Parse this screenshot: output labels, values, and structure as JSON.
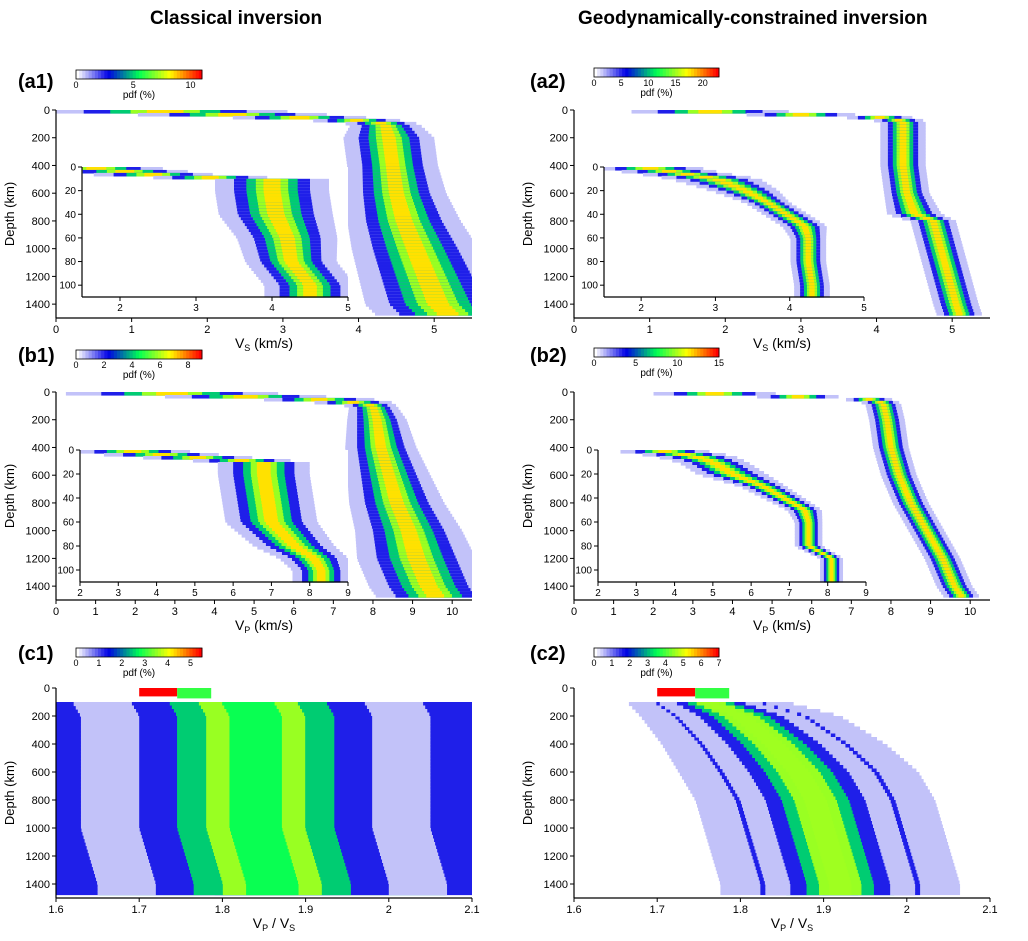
{
  "titles": {
    "left": "Classical inversion",
    "right": "Geodynamically-constrained inversion"
  },
  "colormap_stops": [
    "#ffffff",
    "#0000e6",
    "#00ff55",
    "#ffff00",
    "#ff0000"
  ],
  "chart_data": [
    {
      "id": "a1",
      "panel_label": "(a1)",
      "type": "heatmap",
      "xlabel": "V",
      "xlabel_sub": "S",
      "xlabel_unit": "(km/s)",
      "ylabel": "Depth (km)",
      "xlim": [
        0,
        5.5
      ],
      "ylim": [
        0,
        1500
      ],
      "xticks": [
        0,
        1,
        2,
        3,
        4,
        5
      ],
      "yticks": [
        0,
        200,
        400,
        600,
        800,
        1000,
        1200,
        1400
      ],
      "colorbar": {
        "label": "pdf (%)",
        "ticks": [
          0,
          5,
          10
        ],
        "max": 11
      },
      "ridge": {
        "depth": [
          0,
          70,
          100,
          200,
          400,
          600,
          800,
          1000,
          1200,
          1400,
          1480
        ],
        "velocity": [
          1.0,
          3.9,
          4.35,
          4.4,
          4.45,
          4.5,
          4.6,
          4.75,
          4.9,
          5.05,
          5.2
        ],
        "width": [
          0.6,
          0.2,
          0.15,
          0.2,
          0.2,
          0.22,
          0.25,
          0.28,
          0.3,
          0.32,
          0.32
        ]
      },
      "inset": {
        "xlim": [
          1.5,
          5
        ],
        "ylim": [
          0,
          110
        ],
        "xticks": [
          2,
          3,
          4,
          5
        ],
        "yticks": [
          0,
          20,
          40,
          60,
          80,
          100
        ],
        "ridge": {
          "depth": [
            0,
            8,
            10,
            20,
            40,
            60,
            80,
            100,
            110
          ],
          "velocity": [
            1.5,
            2.7,
            4.0,
            4.0,
            4.05,
            4.2,
            4.25,
            4.5,
            4.5
          ],
          "width": [
            0.3,
            0.25,
            0.25,
            0.25,
            0.25,
            0.22,
            0.2,
            0.2,
            0.2
          ]
        }
      }
    },
    {
      "id": "a2",
      "panel_label": "(a2)",
      "type": "heatmap",
      "xlabel": "V",
      "xlabel_sub": "S",
      "xlabel_unit": "(km/s)",
      "ylabel": "Depth (km)",
      "xlim": [
        0,
        5.5
      ],
      "ylim": [
        0,
        1500
      ],
      "xticks": [
        0,
        1,
        2,
        3,
        4,
        5
      ],
      "yticks": [
        0,
        200,
        400,
        600,
        800,
        1000,
        1200,
        1400
      ],
      "colorbar": {
        "label": "pdf (%)",
        "ticks": [
          0,
          5,
          10,
          15,
          20
        ],
        "max": 23
      },
      "ridge": {
        "depth": [
          0,
          50,
          80,
          200,
          400,
          600,
          750,
          800,
          1000,
          1200,
          1400,
          1480
        ],
        "velocity": [
          1.2,
          4.0,
          4.35,
          4.35,
          4.35,
          4.4,
          4.5,
          4.75,
          4.85,
          4.95,
          5.05,
          5.1
        ],
        "width": [
          0.4,
          0.15,
          0.1,
          0.1,
          0.1,
          0.1,
          0.12,
          0.1,
          0.1,
          0.1,
          0.1,
          0.1
        ]
      },
      "inset": {
        "xlim": [
          1.5,
          5
        ],
        "ylim": [
          0,
          110
        ],
        "xticks": [
          2,
          3,
          4,
          5
        ],
        "yticks": [
          0,
          20,
          40,
          60,
          80,
          100
        ],
        "ridge": {
          "depth": [
            0,
            5,
            10,
            20,
            30,
            50,
            60,
            80,
            100,
            110
          ],
          "velocity": [
            2.0,
            2.5,
            3.0,
            3.4,
            3.7,
            4.2,
            4.25,
            4.25,
            4.3,
            4.3
          ],
          "width": [
            0.25,
            0.2,
            0.2,
            0.15,
            0.1,
            0.1,
            0.08,
            0.08,
            0.08,
            0.08
          ]
        }
      }
    },
    {
      "id": "b1",
      "panel_label": "(b1)",
      "type": "heatmap",
      "xlabel": "V",
      "xlabel_sub": "P",
      "xlabel_unit": "(km/s)",
      "ylabel": "Depth (km)",
      "xlim": [
        0,
        10.5
      ],
      "ylim": [
        0,
        1500
      ],
      "xticks": [
        0,
        1,
        2,
        3,
        4,
        5,
        6,
        7,
        8,
        9,
        10
      ],
      "yticks": [
        0,
        200,
        400,
        600,
        800,
        1000,
        1200,
        1400
      ],
      "colorbar": {
        "label": "pdf (%)",
        "ticks": [
          0,
          2,
          4,
          6,
          8
        ],
        "max": 9
      },
      "ridge": {
        "depth": [
          0,
          60,
          100,
          200,
          400,
          600,
          800,
          1000,
          1200,
          1400,
          1480
        ],
        "velocity": [
          2.0,
          7.2,
          8.0,
          8.1,
          8.2,
          8.4,
          8.6,
          8.9,
          9.1,
          9.4,
          9.6
        ],
        "width": [
          1.0,
          0.4,
          0.2,
          0.25,
          0.3,
          0.35,
          0.4,
          0.45,
          0.5,
          0.5,
          0.5
        ]
      },
      "inset": {
        "xlim": [
          2,
          9
        ],
        "ylim": [
          0,
          110
        ],
        "xticks": [
          2,
          3,
          4,
          5,
          6,
          7,
          8,
          9
        ],
        "yticks": [
          0,
          20,
          40,
          60,
          80,
          100
        ],
        "ridge": {
          "depth": [
            0,
            5,
            10,
            20,
            40,
            60,
            80,
            90,
            100,
            110
          ],
          "velocity": [
            3.0,
            4.5,
            6.8,
            6.8,
            6.9,
            7.0,
            7.6,
            8.1,
            8.3,
            8.3
          ],
          "width": [
            0.5,
            0.5,
            0.4,
            0.4,
            0.4,
            0.4,
            0.35,
            0.3,
            0.25,
            0.25
          ]
        }
      }
    },
    {
      "id": "b2",
      "panel_label": "(b2)",
      "type": "heatmap",
      "xlabel": "V",
      "xlabel_sub": "P",
      "xlabel_unit": "(km/s)",
      "ylabel": "Depth (km)",
      "xlim": [
        0,
        10.5
      ],
      "ylim": [
        0,
        1500
      ],
      "xticks": [
        0,
        1,
        2,
        3,
        4,
        5,
        6,
        7,
        8,
        9,
        10
      ],
      "yticks": [
        0,
        200,
        400,
        600,
        800,
        1000,
        1200,
        1400
      ],
      "colorbar": {
        "label": "pdf (%)",
        "ticks": [
          0,
          5,
          10,
          15
        ],
        "max": 15
      },
      "ridge": {
        "depth": [
          0,
          50,
          80,
          200,
          400,
          600,
          800,
          1000,
          1200,
          1400,
          1480
        ],
        "velocity": [
          2.5,
          7.4,
          7.8,
          7.9,
          8.0,
          8.2,
          8.5,
          8.9,
          9.3,
          9.6,
          9.8
        ],
        "width": [
          0.6,
          0.2,
          0.15,
          0.15,
          0.15,
          0.15,
          0.15,
          0.15,
          0.15,
          0.15,
          0.15
        ]
      },
      "inset": {
        "xlim": [
          2,
          9
        ],
        "ylim": [
          0,
          110
        ],
        "xticks": [
          2,
          3,
          4,
          5,
          6,
          7,
          8,
          9
        ],
        "yticks": [
          0,
          20,
          40,
          60,
          80,
          100
        ],
        "ridge": {
          "depth": [
            0,
            5,
            10,
            20,
            30,
            50,
            60,
            80,
            90,
            100,
            110
          ],
          "velocity": [
            3.5,
            4.5,
            5.0,
            5.5,
            6.3,
            7.4,
            7.5,
            7.5,
            8.1,
            8.1,
            8.1
          ],
          "width": [
            0.4,
            0.35,
            0.3,
            0.3,
            0.2,
            0.15,
            0.12,
            0.12,
            0.1,
            0.1,
            0.1
          ]
        }
      }
    },
    {
      "id": "c1",
      "panel_label": "(c1)",
      "type": "heatmap",
      "xlabel": "V",
      "xlabel_sub": "P",
      "xlabel_mid": " / V",
      "xlabel_sub2": "S",
      "xlabel_unit": "",
      "ylabel": "Depth (km)",
      "xlim": [
        1.6,
        2.1
      ],
      "ylim": [
        0,
        1500
      ],
      "xticks": [
        1.6,
        1.7,
        1.8,
        1.9,
        2.0,
        2.1
      ],
      "yticks": [
        0,
        200,
        400,
        600,
        800,
        1000,
        1200,
        1400
      ],
      "colorbar": {
        "label": "pdf (%)",
        "ticks": [
          0,
          1,
          2,
          3,
          4,
          5
        ],
        "max": 5.5
      },
      "ridge": {
        "depth": [
          100,
          200,
          400,
          600,
          800,
          1000,
          1200,
          1400,
          1480
        ],
        "velocity": [
          1.83,
          1.84,
          1.84,
          1.84,
          1.84,
          1.84,
          1.85,
          1.86,
          1.86
        ],
        "width": [
          0.07,
          0.07,
          0.07,
          0.07,
          0.07,
          0.07,
          0.07,
          0.07,
          0.07
        ]
      },
      "lid": {
        "depth": [
          0,
          60,
          100
        ],
        "velocity": [
          1.7,
          1.7,
          1.7
        ]
      }
    },
    {
      "id": "c2",
      "panel_label": "(c2)",
      "type": "heatmap",
      "xlabel": "V",
      "xlabel_sub": "P",
      "xlabel_mid": " / V",
      "xlabel_sub2": "S",
      "xlabel_unit": "",
      "ylabel": "Depth (km)",
      "xlim": [
        1.6,
        2.1
      ],
      "ylim": [
        0,
        1500
      ],
      "xticks": [
        1.6,
        1.7,
        1.8,
        1.9,
        2.0,
        2.1
      ],
      "yticks": [
        0,
        200,
        400,
        600,
        800,
        1000,
        1200,
        1400
      ],
      "colorbar": {
        "label": "pdf (%)",
        "ticks": [
          0,
          1,
          2,
          3,
          4,
          5,
          6,
          7
        ],
        "max": 7
      },
      "ridge": {
        "depth": [
          100,
          200,
          400,
          600,
          800,
          1000,
          1200,
          1400,
          1480
        ],
        "velocity": [
          1.76,
          1.8,
          1.84,
          1.87,
          1.89,
          1.9,
          1.91,
          1.92,
          1.92
        ],
        "width": [
          0.02,
          0.025,
          0.028,
          0.03,
          0.03,
          0.03,
          0.03,
          0.03,
          0.03
        ]
      },
      "lid": {
        "depth": [
          0,
          60,
          100
        ],
        "velocity": [
          1.7,
          1.7,
          1.7
        ]
      }
    }
  ]
}
